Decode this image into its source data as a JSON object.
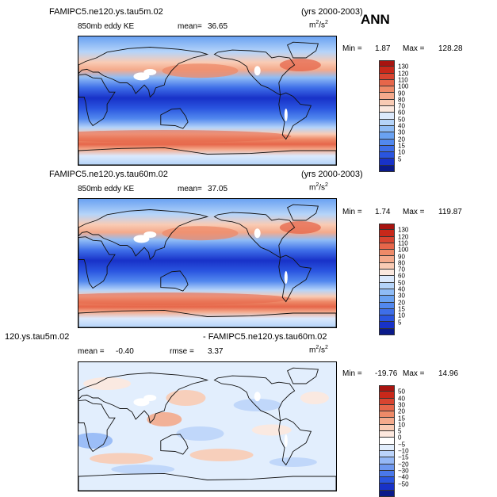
{
  "annotation": "ANN",
  "colorbar_palettes": {
    "ke": [
      "#0a1a8a",
      "#1832c8",
      "#2a55e0",
      "#3e6ee8",
      "#5288ee",
      "#6aa2f2",
      "#8fbcf6",
      "#b5d4f9",
      "#dbe9fc",
      "#fbe8de",
      "#f9cbb4",
      "#f4aa8c",
      "#ee8a68",
      "#e6664a",
      "#d84430",
      "#c8281a",
      "#a81410"
    ],
    "diff": [
      "#0a1a8a",
      "#1832c8",
      "#2a55e0",
      "#4a78ea",
      "#6e98f0",
      "#95b8f6",
      "#bcd4fa",
      "#e2eefd",
      "#ffffff",
      "#fde8de",
      "#f9cbb4",
      "#f4aa8c",
      "#ee8a68",
      "#e6664a",
      "#d84430",
      "#c8281a",
      "#a81410"
    ]
  },
  "chart_data": [
    {
      "type": "heatmap",
      "title": "FAMIPC5.ne120.ys.tau5m.02",
      "years": "(yrs 2000-2003)",
      "field": "850mb eddy KE",
      "mean_label": "mean=",
      "mean": "36.65",
      "units": "m2/s2",
      "units_base": "m",
      "units_exp1": "2",
      "units_slash": "/s",
      "units_exp2": "2",
      "min_label": "Min =",
      "min": "1.87",
      "max_label": "Max =",
      "max": "128.28",
      "levels": [
        "130",
        "120",
        "110",
        "100",
        "90",
        "80",
        "70",
        "60",
        "50",
        "40",
        "30",
        "20",
        "15",
        "10",
        "5"
      ]
    },
    {
      "type": "heatmap",
      "title": "FAMIPC5.ne120.ys.tau60m.02",
      "years": "(yrs 2000-2003)",
      "field": "850mb eddy KE",
      "mean_label": "mean=",
      "mean": "37.05",
      "units": "m2/s2",
      "units_base": "m",
      "units_exp1": "2",
      "units_slash": "/s",
      "units_exp2": "2",
      "min_label": "Min =",
      "min": "1.74",
      "max_label": "Max =",
      "max": "119.87",
      "levels": [
        "130",
        "120",
        "110",
        "100",
        "90",
        "80",
        "70",
        "60",
        "50",
        "40",
        "30",
        "20",
        "15",
        "10",
        "5"
      ]
    },
    {
      "type": "heatmap",
      "title_left": "120.ys.tau5m.02",
      "title_right": "- FAMIPC5.ne120.ys.tau60m.02",
      "mean_label": "mean =",
      "mean": "-0.40",
      "rmse_label": "rmse =",
      "rmse": "3.37",
      "units": "m2/s2",
      "units_base": "m",
      "units_exp1": "2",
      "units_slash": "/s",
      "units_exp2": "2",
      "min_label": "Min =",
      "min": "-19.76",
      "max_label": "Max =",
      "max": "14.96",
      "levels": [
        "50",
        "40",
        "30",
        "20",
        "15",
        "10",
        "5",
        "0",
        "−5",
        "−10",
        "−15",
        "−20",
        "−30",
        "−40",
        "−50"
      ]
    }
  ]
}
